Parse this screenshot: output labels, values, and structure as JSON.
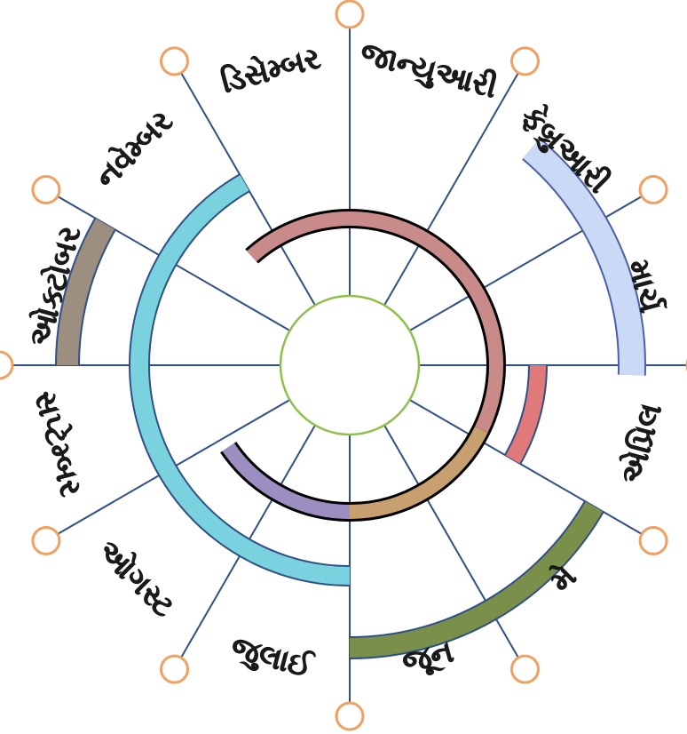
{
  "diagram": {
    "months": [
      {
        "label": "જાન્યુઆરી"
      },
      {
        "label": "ફેબ્રુઆરી"
      },
      {
        "label": "માર્ચ"
      },
      {
        "label": "એપ્રિલ"
      },
      {
        "label": "મે"
      },
      {
        "label": "જૂન"
      },
      {
        "label": "જુલાઈ"
      },
      {
        "label": "ઓગસ્ટ"
      },
      {
        "label": "સપ્ટેમ્બર"
      },
      {
        "label": "ઓક્ટોબર"
      },
      {
        "label": "નવેમ્બર"
      },
      {
        "label": "ડિસેમ્બર"
      }
    ],
    "spans": [
      {
        "name": "blue-lavender",
        "from_month": "ફેબ્રુઆરી",
        "to_month": "એપ્રિલ",
        "color": "#c9d9f6",
        "edge": "#4a5fa8"
      },
      {
        "name": "salmon",
        "from_month": "એપ્રિલ",
        "to_month": "મે",
        "color": "#e07a7a",
        "edge": "#2f4f86"
      },
      {
        "name": "green",
        "from_month": "મે",
        "to_month": "જુલાઈ",
        "color": "#7a8f4a",
        "edge": "#2f4f86"
      },
      {
        "name": "cyan",
        "from_month": "જુલાઈ",
        "to_month": "ડિસેમ્બર",
        "color": "#79d2de",
        "edge": "#2f4f86"
      },
      {
        "name": "gray-brown",
        "from_month": "ઓક્ટોબર",
        "to_month": "નવેમ્બર",
        "color": "#9c8f80",
        "edge": "#2f4f86"
      },
      {
        "name": "inner-rose",
        "color": "#c98a8a",
        "edge": "#000000"
      },
      {
        "name": "inner-tan",
        "color": "#c8a070",
        "edge": "#000000"
      },
      {
        "name": "inner-purple",
        "color": "#9d8ec2",
        "edge": "#000000"
      }
    ],
    "colors": {
      "spoke": "#2f4f86",
      "node_stroke": "#f0a060",
      "center_stroke": "#8fbf4a"
    }
  }
}
